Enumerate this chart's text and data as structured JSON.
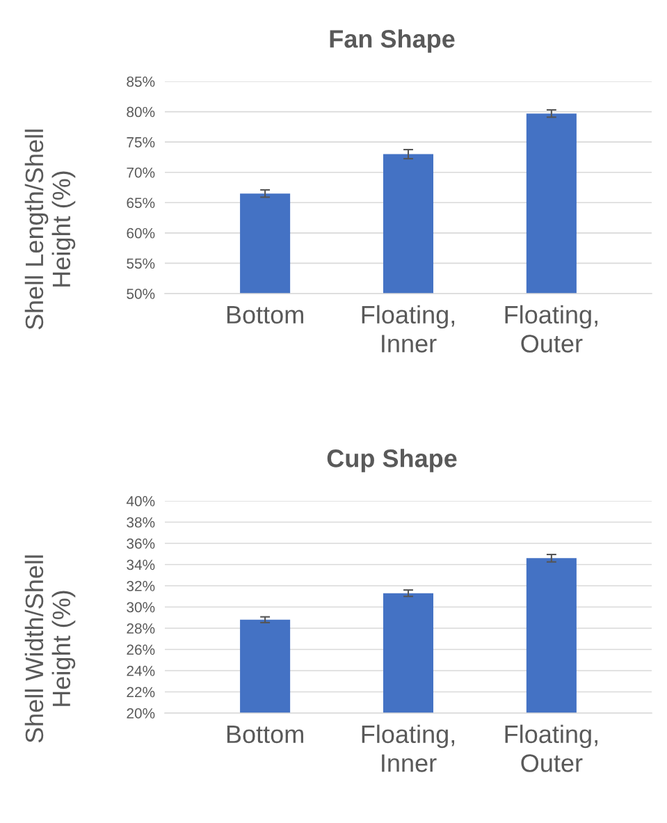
{
  "chart_data": [
    {
      "type": "bar",
      "title": "Fan Shape",
      "ylabel": "Shell Length/Shell\nHeight (%)",
      "categories": [
        "Bottom",
        "Floating,\nInner",
        "Floating,\nOuter"
      ],
      "values": [
        66.5,
        73.0,
        79.7
      ],
      "errors": [
        0.6,
        0.75,
        0.6
      ],
      "color": "#4472c4",
      "ylim": [
        50,
        85
      ],
      "yticks": [
        {
          "value": 50,
          "label": "50%"
        },
        {
          "value": 55,
          "label": "55%"
        },
        {
          "value": 60,
          "label": "60%"
        },
        {
          "value": 65,
          "label": "65%"
        },
        {
          "value": 70,
          "label": "70%"
        },
        {
          "value": 75,
          "label": "75%"
        },
        {
          "value": 80,
          "label": "80%"
        },
        {
          "value": 85,
          "label": "85%"
        }
      ],
      "grid": "y"
    },
    {
      "type": "bar",
      "title": "Cup Shape",
      "ylabel": "Shell Width/Shell\nHeight (%)",
      "categories": [
        "Bottom",
        "Floating,\nInner",
        "Floating,\nOuter"
      ],
      "values": [
        28.8,
        31.3,
        34.6
      ],
      "errors": [
        0.27,
        0.3,
        0.35
      ],
      "color": "#4472c4",
      "ylim": [
        20,
        40
      ],
      "yticks": [
        {
          "value": 20,
          "label": "20%"
        },
        {
          "value": 22,
          "label": "22%"
        },
        {
          "value": 24,
          "label": "24%"
        },
        {
          "value": 26,
          "label": "26%"
        },
        {
          "value": 28,
          "label": "28%"
        },
        {
          "value": 30,
          "label": "30%"
        },
        {
          "value": 32,
          "label": "32%"
        },
        {
          "value": 34,
          "label": "34%"
        },
        {
          "value": 36,
          "label": "36%"
        },
        {
          "value": 38,
          "label": "38%"
        },
        {
          "value": 40,
          "label": "40%"
        }
      ],
      "grid": "y"
    }
  ]
}
